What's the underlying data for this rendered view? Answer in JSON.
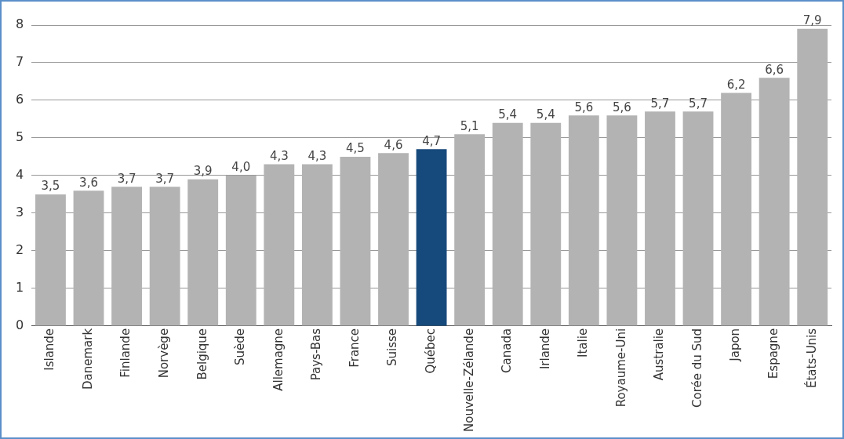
{
  "chart_data": {
    "type": "bar",
    "categories": [
      "Islande",
      "Danemark",
      "Finlande",
      "Norvège",
      "Belgique",
      "Suède",
      "Allemagne",
      "Pays-Bas",
      "France",
      "Suisse",
      "Québec",
      "Nouvelle-Zélande",
      "Canada",
      "Irlande",
      "Italie",
      "Royaume-Uni",
      "Australie",
      "Corée du Sud",
      "Japon",
      "Espagne",
      "États-Unis"
    ],
    "values": [
      3.5,
      3.6,
      3.7,
      3.7,
      3.9,
      4.0,
      4.3,
      4.3,
      4.5,
      4.6,
      4.7,
      5.1,
      5.4,
      5.4,
      5.6,
      5.6,
      5.7,
      5.7,
      6.2,
      6.6,
      7.9
    ],
    "colors": [
      "#b3b3b3",
      "#b3b3b3",
      "#b3b3b3",
      "#b3b3b3",
      "#b3b3b3",
      "#b3b3b3",
      "#b3b3b3",
      "#b3b3b3",
      "#b3b3b3",
      "#b3b3b3",
      "#174a7c",
      "#b3b3b3",
      "#b3b3b3",
      "#b3b3b3",
      "#b3b3b3",
      "#b3b3b3",
      "#b3b3b3",
      "#b3b3b3",
      "#b3b3b3",
      "#b3b3b3",
      "#b3b3b3"
    ],
    "value_labels": [
      "3,5",
      "3,6",
      "3,7",
      "3,7",
      "3,9",
      "4,0",
      "4,3",
      "4,3",
      "4,5",
      "4,6",
      "4,7",
      "5,1",
      "5,4",
      "5,4",
      "5,6",
      "5,6",
      "5,7",
      "5,7",
      "6,2",
      "6,6",
      "7,9"
    ],
    "ylim": [
      0,
      8
    ],
    "yticks": [
      0,
      1,
      2,
      3,
      4,
      5,
      6,
      7,
      8
    ],
    "grid": "y",
    "legend": false
  }
}
